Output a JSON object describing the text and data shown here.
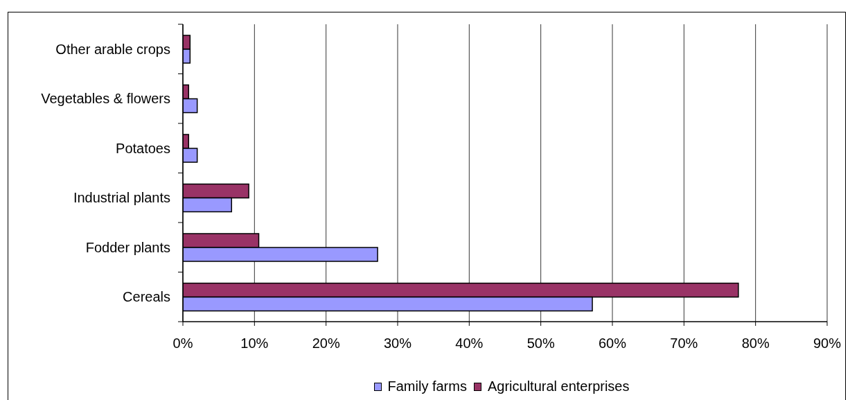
{
  "chart_data": {
    "type": "bar",
    "orientation": "horizontal",
    "categories": [
      "Other arable crops",
      "Vegetables & flowers",
      "Potatoes",
      "Industrial plants",
      "Fodder plants",
      "Cereals"
    ],
    "series": [
      {
        "name": "Family farms",
        "color": "#9999ff",
        "values": [
          1.0,
          2.0,
          2.0,
          6.8,
          27.2,
          57.2
        ]
      },
      {
        "name": "Agricultural enterprises",
        "color": "#993366",
        "values": [
          1.0,
          0.8,
          0.8,
          9.2,
          10.6,
          77.6
        ]
      }
    ],
    "xlim": [
      0,
      90
    ],
    "xticks": [
      {
        "value": 0,
        "label": "0%"
      },
      {
        "value": 10,
        "label": "10%"
      },
      {
        "value": 20,
        "label": "20%"
      },
      {
        "value": 30,
        "label": "30%"
      },
      {
        "value": 40,
        "label": "40%"
      },
      {
        "value": 50,
        "label": "50%"
      },
      {
        "value": 60,
        "label": "60%"
      },
      {
        "value": 70,
        "label": "70%"
      },
      {
        "value": 80,
        "label": "80%"
      },
      {
        "value": 90,
        "label": "90%"
      }
    ],
    "grid": "x",
    "legend": "bottom"
  }
}
